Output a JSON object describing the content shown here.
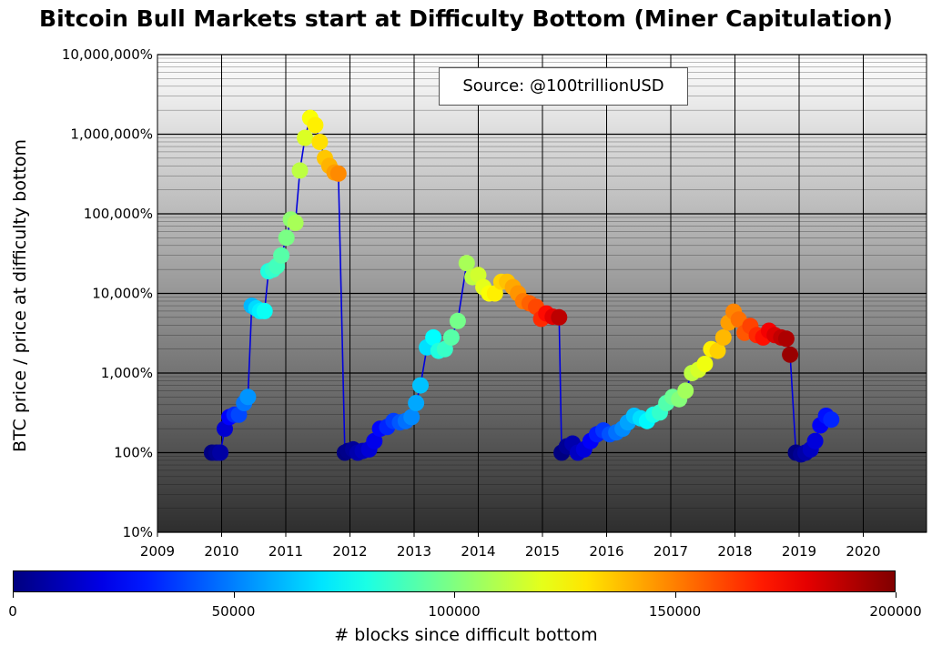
{
  "chart_data": {
    "type": "scatter",
    "title": "Bitcoin Bull Markets start at Difficulty Bottom (Miner Capitulation)",
    "ylabel": "BTC price / price at difficulty bottom",
    "annotation": "Source: @100trillionUSD",
    "y_scale": "log",
    "ylim": [
      10,
      10000000
    ],
    "xlim": [
      2009,
      2020.7
    ],
    "x_ticks": [
      "2009",
      "2010",
      "2011",
      "2012",
      "2013",
      "2014",
      "2015",
      "2016",
      "2017",
      "2018",
      "2019",
      "2020"
    ],
    "y_ticks": [
      "10%",
      "100%",
      "1,000%",
      "10,000%",
      "100,000%",
      "1,000,000%",
      "10,000,000%"
    ],
    "grid": true,
    "line_color": "#0000dd",
    "colorbar": {
      "label": "# blocks since difficult bottom",
      "range": [
        0,
        200000
      ],
      "ticks": [
        "0",
        "50000",
        "100000",
        "150000",
        "200000"
      ],
      "colormap": "jet"
    },
    "series": [
      {
        "x": [
          2009.85,
          2009.92,
          2009.98,
          2010.05,
          2010.12,
          2010.2,
          2010.27,
          2010.35,
          2010.41,
          2010.47,
          2010.54,
          2010.6,
          2010.67,
          2010.73,
          2010.8,
          2010.86,
          2010.93,
          2011.01,
          2011.08,
          2011.15,
          2011.22,
          2011.3,
          2011.38,
          2011.46,
          2011.53,
          2011.61,
          2011.68,
          2011.76,
          2011.82
        ],
        "y": [
          100,
          100,
          100,
          200,
          280,
          300,
          300,
          420,
          500,
          7000,
          6500,
          6000,
          6000,
          19000,
          20000,
          22000,
          30000,
          50000,
          85000,
          77000,
          350000,
          900000,
          1600000,
          1300000,
          800000,
          500000,
          400000,
          330000,
          320000
        ],
        "blocks": [
          0,
          3000,
          7000,
          16000,
          25000,
          33000,
          39000,
          48000,
          54000,
          61000,
          68000,
          72000,
          77000,
          81000,
          85000,
          88000,
          92000,
          99000,
          103000,
          108000,
          112000,
          118000,
          124000,
          128000,
          131000,
          136000,
          140000,
          144000,
          148000
        ]
      },
      {
        "x": [
          2011.92,
          2011.97,
          2012.05,
          2012.12,
          2012.2,
          2012.3,
          2012.38,
          2012.47,
          2012.58,
          2012.68,
          2012.78,
          2012.87,
          2012.96,
          2013.03,
          2013.1,
          2013.2,
          2013.3,
          2013.38,
          2013.48,
          2013.58,
          2013.68,
          2013.82,
          2013.91,
          2014.0,
          2014.08,
          2014.17,
          2014.26,
          2014.36,
          2014.45,
          2014.54,
          2014.62,
          2014.7,
          2014.8,
          2014.9,
          2014.98,
          2015.06,
          2015.16,
          2015.26
        ],
        "y": [
          100,
          105,
          110,
          100,
          105,
          110,
          140,
          200,
          210,
          250,
          240,
          250,
          280,
          420,
          700,
          2100,
          2800,
          1900,
          2000,
          2800,
          4500,
          24000,
          16000,
          17000,
          12000,
          10000,
          10000,
          14000,
          14000,
          12000,
          10000,
          8000,
          7500,
          6800,
          4800,
          5600,
          5100,
          5000
        ],
        "blocks": [
          0,
          2000,
          5000,
          9000,
          12000,
          17000,
          21000,
          26000,
          32000,
          37000,
          42000,
          47000,
          52000,
          58000,
          63000,
          69000,
          75000,
          81000,
          86000,
          92000,
          98000,
          108000,
          112000,
          116000,
          120000,
          124000,
          128000,
          133000,
          137000,
          142000,
          146000,
          151000,
          156000,
          161000,
          167000,
          173000,
          180000,
          188000
        ]
      },
      {
        "x": [
          2015.3,
          2015.38,
          2015.47,
          2015.55,
          2015.65,
          2015.75,
          2015.85,
          2015.95,
          2016.05,
          2016.15,
          2016.25,
          2016.33,
          2016.43,
          2016.53,
          2016.63,
          2016.73,
          2016.83,
          2016.93,
          2017.03,
          2017.13,
          2017.23,
          2017.33,
          2017.43,
          2017.53,
          2017.63,
          2017.73,
          2017.82,
          2017.9,
          2017.98,
          2018.06,
          2018.15,
          2018.24,
          2018.34,
          2018.44,
          2018.53,
          2018.62,
          2018.72,
          2018.8,
          2018.86
        ],
        "y": [
          100,
          120,
          130,
          100,
          110,
          140,
          170,
          190,
          170,
          180,
          200,
          240,
          290,
          270,
          250,
          300,
          320,
          420,
          500,
          470,
          600,
          1000,
          1100,
          1300,
          2000,
          1900,
          2800,
          4300,
          5900,
          4700,
          3200,
          3900,
          3000,
          2800,
          3400,
          3000,
          2800,
          2700,
          1700
        ],
        "blocks": [
          0,
          4000,
          9000,
          13000,
          18000,
          24000,
          30000,
          36000,
          41000,
          47000,
          52000,
          57000,
          63000,
          69000,
          74000,
          79000,
          85000,
          91000,
          96000,
          101000,
          107000,
          112000,
          117000,
          122000,
          128000,
          134000,
          139000,
          144000,
          149000,
          153000,
          158000,
          162000,
          167000,
          172000,
          177000,
          182000,
          187000,
          191000,
          195000
        ]
      },
      {
        "x": [
          2018.95,
          2019.03,
          2019.1,
          2019.18,
          2019.25,
          2019.33,
          2019.42,
          2019.5
        ],
        "y": [
          100,
          95,
          100,
          110,
          140,
          220,
          290,
          260
        ],
        "blocks": [
          0,
          4000,
          8000,
          13000,
          18000,
          23000,
          28000,
          32000
        ]
      }
    ]
  }
}
